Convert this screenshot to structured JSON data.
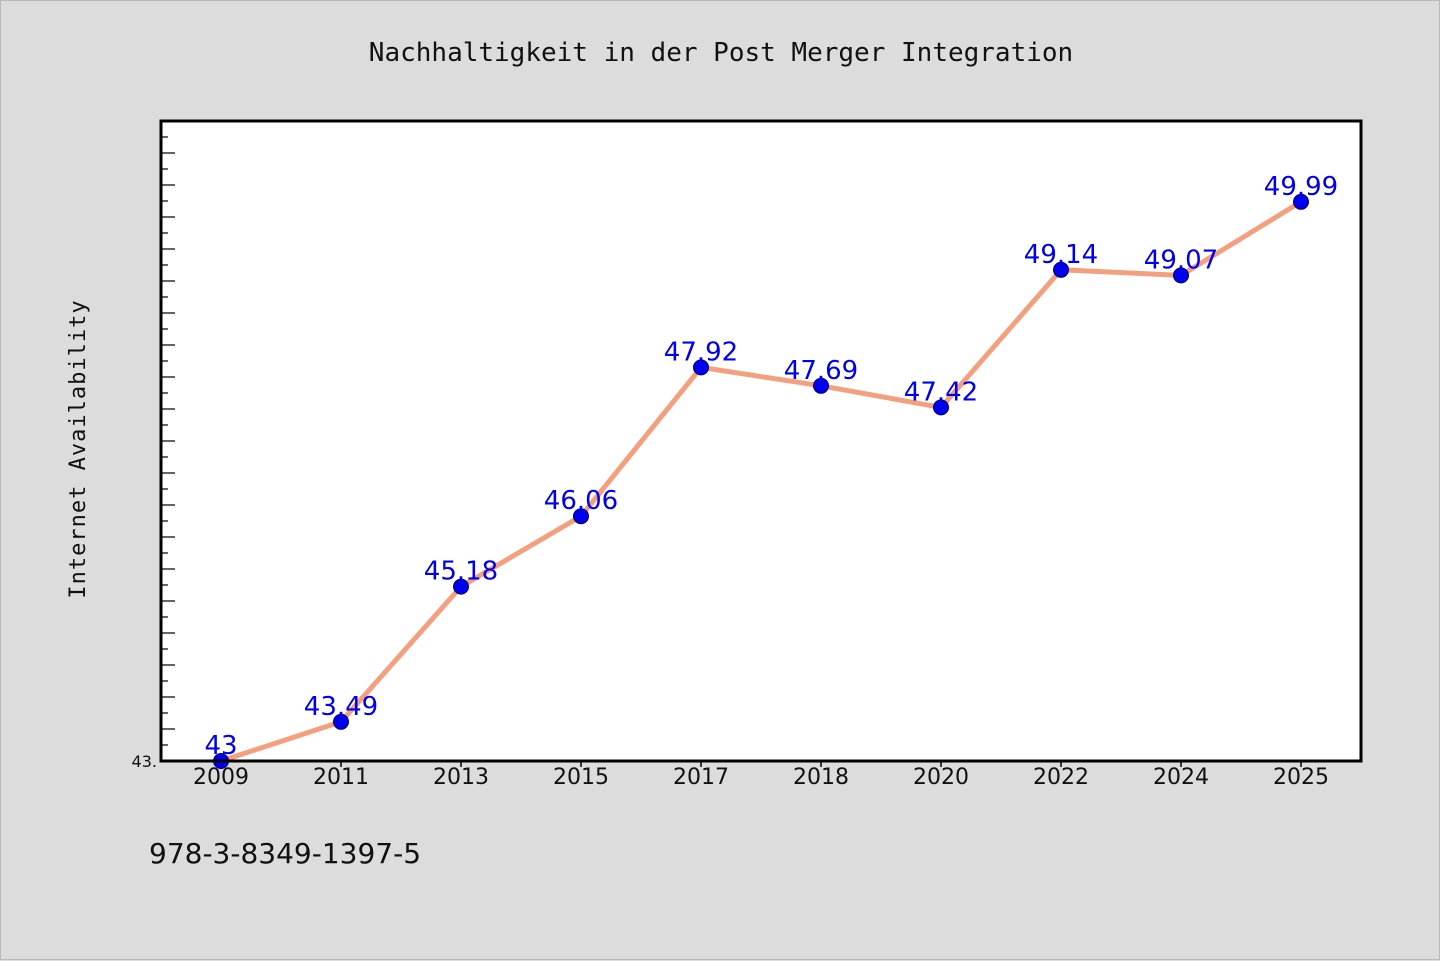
{
  "chart_data": {
    "type": "line",
    "title": "Nachhaltigkeit in der Post Merger Integration",
    "xlabel": "",
    "ylabel": "Internet Availability",
    "categories": [
      "2009",
      "2011",
      "2013",
      "2015",
      "2017",
      "2018",
      "2020",
      "2022",
      "2024",
      "2025"
    ],
    "series": [
      {
        "values": [
          43,
          43.49,
          45.18,
          46.06,
          47.92,
          47.69,
          47.42,
          49.14,
          49.07,
          49.99
        ],
        "data_labels": [
          "43",
          "43.49",
          "45.18",
          "46.06",
          "47.92",
          "47.69",
          "47.42",
          "49.14",
          "49.07",
          "49.99"
        ]
      }
    ],
    "ylim": [
      43,
      51
    ],
    "y_tick_labels": [
      "43."
    ],
    "grid": false,
    "line_color": "#f4a07e",
    "marker_color": "#0000ee",
    "label_color": "#0000ee",
    "plot_background": "#ffffff",
    "figure_background": "#dcdcdc"
  },
  "footnote": "978-3-8349-1397-5"
}
